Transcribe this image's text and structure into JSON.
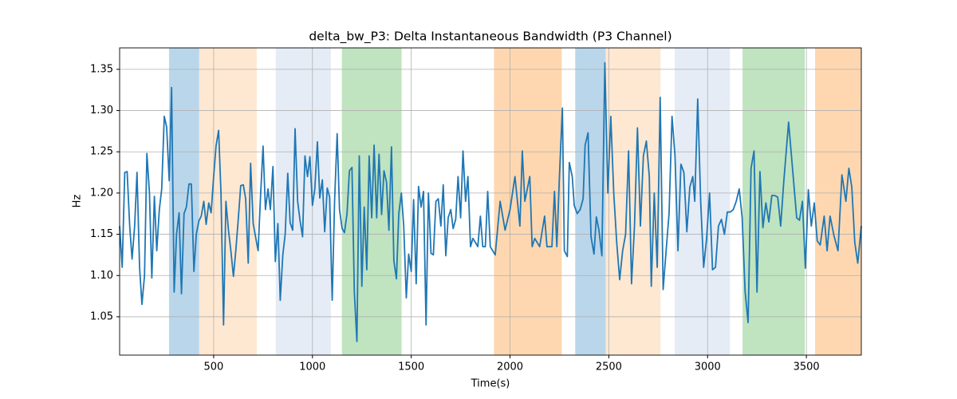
{
  "chart_data": {
    "type": "line",
    "title": "delta_bw_P3: Delta Instantaneous Bandwidth (P3 Channel)",
    "xlabel": "Time(s)",
    "ylabel": "Hz",
    "color": "#1f77b4",
    "grid": true,
    "xlim": [
      24,
      3778
    ],
    "ylim": [
      1.0035,
      1.376
    ],
    "xticks": [
      500,
      1000,
      1500,
      2000,
      2500,
      3000,
      3500
    ],
    "yticks": [
      1.05,
      {
        "value": 1.1,
        "label": "1.10"
      },
      1.15,
      {
        "value": 1.2,
        "label": "1.20"
      },
      1.25,
      {
        "value": 1.3,
        "label": "1.30"
      },
      1.35
    ],
    "spans": [
      {
        "xlim": [
          274,
          427
        ],
        "color": "#bad6ea"
      },
      {
        "xlim": [
          427,
          718
        ],
        "color": "#fee8d2"
      },
      {
        "xlim": [
          814,
          1093
        ],
        "color": "#e5ecf6"
      },
      {
        "xlim": [
          1149,
          1451
        ],
        "color": "#c0e3c0"
      },
      {
        "xlim": [
          1919,
          2262
        ],
        "color": "#fed7b0"
      },
      {
        "xlim": [
          2330,
          2484
        ],
        "color": "#bad6ea"
      },
      {
        "xlim": [
          2484,
          2762
        ],
        "color": "#fee8d2"
      },
      {
        "xlim": [
          2834,
          3113
        ],
        "color": "#e5ecf6"
      },
      {
        "xlim": [
          3177,
          3492
        ],
        "color": "#c0e3c0"
      },
      {
        "xlim": [
          3544,
          3778
        ],
        "color": "#fed7b0"
      }
    ],
    "x": [
      24,
      37,
      50,
      62,
      75,
      87,
      100,
      112,
      125,
      137,
      150,
      162,
      175,
      187,
      200,
      212,
      225,
      237,
      250,
      262,
      275,
      287,
      300,
      312,
      325,
      337,
      350,
      362,
      375,
      387,
      400,
      412,
      425,
      437,
      450,
      462,
      475,
      487,
      500,
      512,
      525,
      537,
      550,
      562,
      575,
      587,
      600,
      612,
      625,
      637,
      650,
      662,
      675,
      687,
      700,
      712,
      725,
      737,
      750,
      762,
      775,
      787,
      800,
      812,
      825,
      837,
      850,
      862,
      875,
      887,
      900,
      912,
      925,
      937,
      950,
      962,
      975,
      987,
      1000,
      1012,
      1025,
      1037,
      1050,
      1062,
      1075,
      1087,
      1100,
      1112,
      1125,
      1137,
      1150,
      1162,
      1175,
      1187,
      1200,
      1212,
      1225,
      1237,
      1250,
      1262,
      1275,
      1287,
      1300,
      1312,
      1325,
      1337,
      1350,
      1362,
      1375,
      1387,
      1400,
      1412,
      1425,
      1437,
      1450,
      1462,
      1475,
      1487,
      1500,
      1512,
      1525,
      1537,
      1550,
      1562,
      1575,
      1587,
      1600,
      1612,
      1625,
      1637,
      1650,
      1662,
      1675,
      1687,
      1700,
      1712,
      1725,
      1737,
      1750,
      1762,
      1775,
      1787,
      1800,
      1812,
      1825,
      1837,
      1850,
      1862,
      1875,
      1887,
      1900,
      1925,
      1950,
      1975,
      2000,
      2025,
      2050,
      2062,
      2075,
      2100,
      2112,
      2125,
      2150,
      2175,
      2187,
      2212,
      2225,
      2237,
      2250,
      2265,
      2275,
      2290,
      2300,
      2315,
      2325,
      2340,
      2355,
      2370,
      2380,
      2395,
      2410,
      2425,
      2437,
      2450,
      2465,
      2480,
      2495,
      2510,
      2525,
      2540,
      2555,
      2570,
      2585,
      2600,
      2615,
      2630,
      2645,
      2660,
      2675,
      2690,
      2705,
      2715,
      2730,
      2745,
      2760,
      2775,
      2790,
      2805,
      2820,
      2835,
      2850,
      2865,
      2880,
      2895,
      2910,
      2925,
      2935,
      2950,
      2965,
      2980,
      2995,
      3010,
      3025,
      3040,
      3055,
      3070,
      3085,
      3100,
      3115,
      3130,
      3145,
      3160,
      3175,
      3190,
      3205,
      3220,
      3235,
      3250,
      3265,
      3280,
      3295,
      3310,
      3325,
      3340,
      3355,
      3370,
      3385,
      3410,
      3451,
      3465,
      3480,
      3495,
      3510,
      3525,
      3540,
      3555,
      3570,
      3590,
      3605,
      3620,
      3640,
      3660,
      3680,
      3700,
      3715,
      3730,
      3745,
      3760,
      3778
    ],
    "values": [
      1.16,
      1.11,
      1.225,
      1.226,
      1.16,
      1.12,
      1.16,
      1.225,
      1.11,
      1.065,
      1.1,
      1.248,
      1.2,
      1.097,
      1.196,
      1.13,
      1.18,
      1.205,
      1.293,
      1.28,
      1.215,
      1.328,
      1.08,
      1.15,
      1.176,
      1.078,
      1.175,
      1.183,
      1.211,
      1.211,
      1.105,
      1.15,
      1.166,
      1.172,
      1.19,
      1.162,
      1.188,
      1.176,
      1.22,
      1.257,
      1.276,
      1.2,
      1.04,
      1.19,
      1.155,
      1.13,
      1.099,
      1.13,
      1.17,
      1.209,
      1.21,
      1.193,
      1.115,
      1.236,
      1.163,
      1.147,
      1.13,
      1.195,
      1.257,
      1.18,
      1.205,
      1.18,
      1.232,
      1.117,
      1.163,
      1.07,
      1.125,
      1.15,
      1.224,
      1.164,
      1.155,
      1.278,
      1.19,
      1.167,
      1.147,
      1.245,
      1.22,
      1.244,
      1.185,
      1.205,
      1.262,
      1.194,
      1.216,
      1.153,
      1.206,
      1.195,
      1.07,
      1.19,
      1.272,
      1.18,
      1.157,
      1.152,
      1.175,
      1.227,
      1.231,
      1.08,
      1.02,
      1.245,
      1.087,
      1.183,
      1.107,
      1.245,
      1.17,
      1.258,
      1.17,
      1.247,
      1.174,
      1.227,
      1.213,
      1.155,
      1.256,
      1.118,
      1.096,
      1.175,
      1.2,
      1.16,
      1.073,
      1.126,
      1.105,
      1.192,
      1.09,
      1.208,
      1.183,
      1.202,
      1.04,
      1.2,
      1.127,
      1.125,
      1.19,
      1.193,
      1.16,
      1.21,
      1.124,
      1.17,
      1.18,
      1.157,
      1.168,
      1.22,
      1.17,
      1.251,
      1.19,
      1.22,
      1.135,
      1.145,
      1.14,
      1.135,
      1.172,
      1.135,
      1.135,
      1.202,
      1.135,
      1.125,
      1.19,
      1.155,
      1.18,
      1.22,
      1.16,
      1.251,
      1.19,
      1.22,
      1.135,
      1.145,
      1.135,
      1.172,
      1.135,
      1.135,
      1.202,
      1.135,
      1.22,
      1.303,
      1.13,
      1.123,
      1.237,
      1.22,
      1.185,
      1.175,
      1.18,
      1.193,
      1.258,
      1.273,
      1.147,
      1.126,
      1.171,
      1.155,
      1.124,
      1.358,
      1.2,
      1.293,
      1.2,
      1.14,
      1.095,
      1.13,
      1.15,
      1.251,
      1.09,
      1.16,
      1.279,
      1.16,
      1.245,
      1.263,
      1.22,
      1.087,
      1.2,
      1.11,
      1.316,
      1.083,
      1.13,
      1.175,
      1.293,
      1.245,
      1.13,
      1.235,
      1.225,
      1.153,
      1.207,
      1.22,
      1.19,
      1.314,
      1.19,
      1.11,
      1.145,
      1.2,
      1.107,
      1.11,
      1.16,
      1.168,
      1.15,
      1.177,
      1.177,
      1.18,
      1.19,
      1.205,
      1.17,
      1.08,
      1.043,
      1.23,
      1.251,
      1.08,
      1.226,
      1.158,
      1.188,
      1.165,
      1.197,
      1.197,
      1.195,
      1.16,
      1.212,
      1.286,
      1.17,
      1.167,
      1.19,
      1.109,
      1.204,
      1.16,
      1.188,
      1.142,
      1.137,
      1.172,
      1.13,
      1.172,
      1.148,
      1.13,
      1.222,
      1.19,
      1.23,
      1.207,
      1.14,
      1.115,
      1.16
    ]
  }
}
